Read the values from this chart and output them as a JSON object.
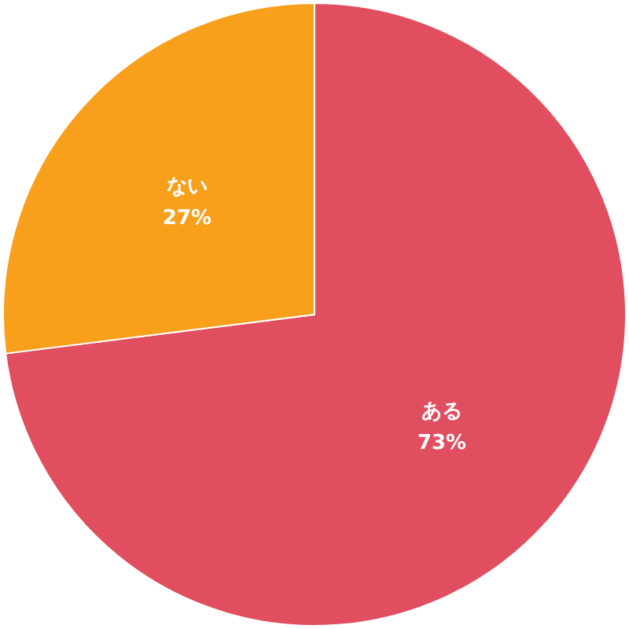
{
  "chart_data": {
    "type": "pie",
    "categories": [
      "ある",
      "ない"
    ],
    "values": [
      73,
      27
    ],
    "colors": [
      "#e04e5f",
      "#f8a01c"
    ],
    "value_labels": [
      "73%",
      "27%"
    ]
  }
}
